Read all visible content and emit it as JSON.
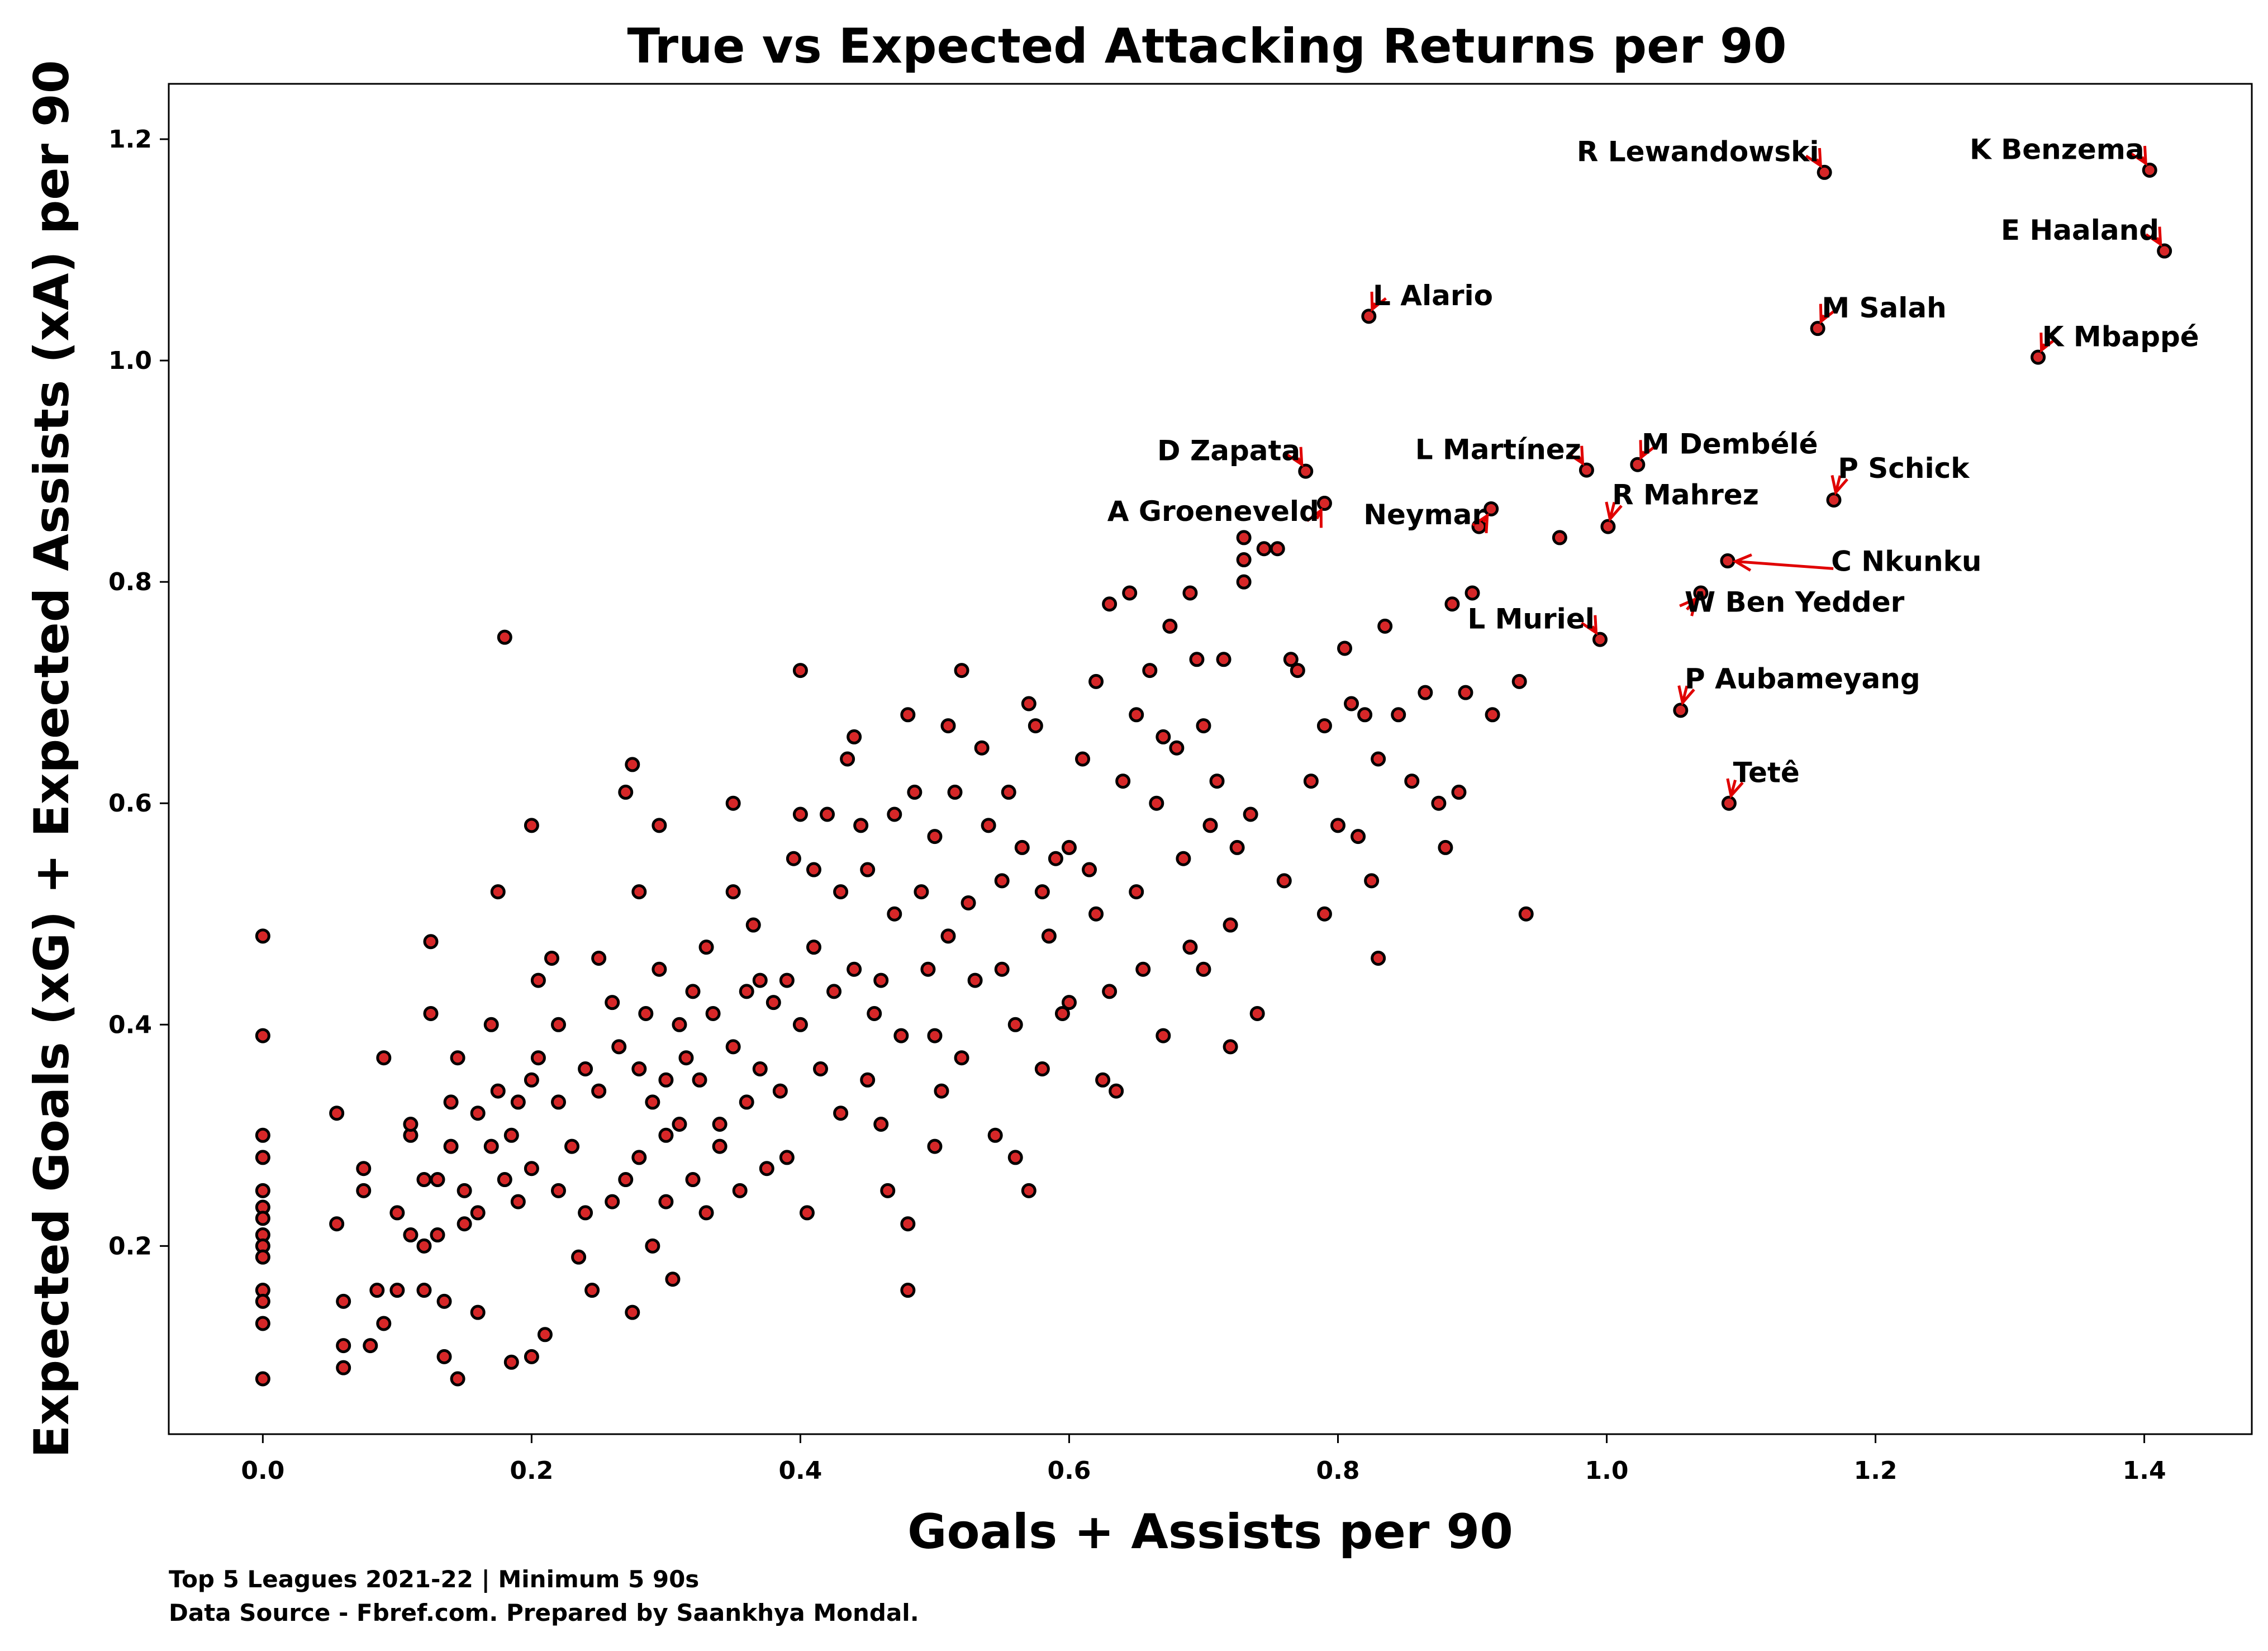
{
  "chart_data": {
    "type": "scatter",
    "title": "True vs Expected Attacking Returns per 90",
    "xlabel": "Goals + Assists per 90",
    "ylabel": "Expected Goals (xG) + Expected Assists (xA) per 90",
    "xlim": [
      -0.07,
      1.48
    ],
    "ylim": [
      0.03,
      1.25
    ],
    "x_ticks": [
      0.0,
      0.2,
      0.4,
      0.6,
      0.8,
      1.0,
      1.2,
      1.4
    ],
    "y_ticks": [
      0.2,
      0.4,
      0.6,
      0.8,
      1.0,
      1.2
    ],
    "x_tick_labels": [
      "0.0",
      "0.2",
      "0.4",
      "0.6",
      "0.8",
      "1.0",
      "1.2",
      "1.4"
    ],
    "y_tick_labels": [
      "0.2",
      "0.4",
      "0.6",
      "0.8",
      "1.0",
      "1.2"
    ],
    "grid": false,
    "marker_color": "#d62728",
    "arrow_color": "#e00000",
    "points": [
      [
        0.0,
        0.48
      ],
      [
        0.0,
        0.39
      ],
      [
        0.0,
        0.3
      ],
      [
        0.0,
        0.28
      ],
      [
        0.0,
        0.25
      ],
      [
        0.0,
        0.235
      ],
      [
        0.0,
        0.225
      ],
      [
        0.0,
        0.21
      ],
      [
        0.0,
        0.2
      ],
      [
        0.0,
        0.19
      ],
      [
        0.0,
        0.16
      ],
      [
        0.0,
        0.15
      ],
      [
        0.0,
        0.13
      ],
      [
        0.0,
        0.08
      ],
      [
        0.055,
        0.32
      ],
      [
        0.055,
        0.22
      ],
      [
        0.06,
        0.15
      ],
      [
        0.06,
        0.09
      ],
      [
        0.06,
        0.11
      ],
      [
        0.075,
        0.25
      ],
      [
        0.075,
        0.27
      ],
      [
        0.08,
        0.11
      ],
      [
        0.085,
        0.16
      ],
      [
        0.09,
        0.37
      ],
      [
        0.09,
        0.13
      ],
      [
        0.1,
        0.23
      ],
      [
        0.1,
        0.16
      ],
      [
        0.11,
        0.21
      ],
      [
        0.11,
        0.3
      ],
      [
        0.11,
        0.31
      ],
      [
        0.12,
        0.26
      ],
      [
        0.12,
        0.16
      ],
      [
        0.12,
        0.2
      ],
      [
        0.125,
        0.41
      ],
      [
        0.125,
        0.475
      ],
      [
        0.13,
        0.26
      ],
      [
        0.13,
        0.21
      ],
      [
        0.135,
        0.1
      ],
      [
        0.135,
        0.15
      ],
      [
        0.14,
        0.33
      ],
      [
        0.14,
        0.29
      ],
      [
        0.145,
        0.08
      ],
      [
        0.145,
        0.37
      ],
      [
        0.15,
        0.25
      ],
      [
        0.15,
        0.22
      ],
      [
        0.16,
        0.23
      ],
      [
        0.16,
        0.32
      ],
      [
        0.16,
        0.14
      ],
      [
        0.17,
        0.4
      ],
      [
        0.17,
        0.29
      ],
      [
        0.175,
        0.52
      ],
      [
        0.175,
        0.34
      ],
      [
        0.18,
        0.75
      ],
      [
        0.18,
        0.26
      ],
      [
        0.185,
        0.3
      ],
      [
        0.185,
        0.095
      ],
      [
        0.19,
        0.33
      ],
      [
        0.19,
        0.24
      ],
      [
        0.2,
        0.58
      ],
      [
        0.2,
        0.35
      ],
      [
        0.2,
        0.1
      ],
      [
        0.2,
        0.27
      ],
      [
        0.205,
        0.44
      ],
      [
        0.205,
        0.37
      ],
      [
        0.21,
        0.12
      ],
      [
        0.215,
        0.46
      ],
      [
        0.22,
        0.4
      ],
      [
        0.22,
        0.33
      ],
      [
        0.22,
        0.25
      ],
      [
        0.23,
        0.29
      ],
      [
        0.235,
        0.19
      ],
      [
        0.24,
        0.36
      ],
      [
        0.24,
        0.23
      ],
      [
        0.245,
        0.16
      ],
      [
        0.25,
        0.46
      ],
      [
        0.25,
        0.34
      ],
      [
        0.26,
        0.42
      ],
      [
        0.26,
        0.24
      ],
      [
        0.265,
        0.38
      ],
      [
        0.27,
        0.61
      ],
      [
        0.27,
        0.26
      ],
      [
        0.275,
        0.635
      ],
      [
        0.275,
        0.14
      ],
      [
        0.28,
        0.52
      ],
      [
        0.28,
        0.36
      ],
      [
        0.28,
        0.28
      ],
      [
        0.285,
        0.41
      ],
      [
        0.29,
        0.33
      ],
      [
        0.29,
        0.2
      ],
      [
        0.295,
        0.58
      ],
      [
        0.295,
        0.45
      ],
      [
        0.3,
        0.35
      ],
      [
        0.3,
        0.3
      ],
      [
        0.3,
        0.24
      ],
      [
        0.305,
        0.17
      ],
      [
        0.31,
        0.4
      ],
      [
        0.31,
        0.31
      ],
      [
        0.315,
        0.37
      ],
      [
        0.32,
        0.43
      ],
      [
        0.32,
        0.26
      ],
      [
        0.325,
        0.35
      ],
      [
        0.33,
        0.47
      ],
      [
        0.33,
        0.23
      ],
      [
        0.335,
        0.41
      ],
      [
        0.34,
        0.31
      ],
      [
        0.34,
        0.29
      ],
      [
        0.35,
        0.6
      ],
      [
        0.35,
        0.52
      ],
      [
        0.35,
        0.38
      ],
      [
        0.355,
        0.25
      ],
      [
        0.36,
        0.43
      ],
      [
        0.36,
        0.33
      ],
      [
        0.365,
        0.49
      ],
      [
        0.37,
        0.44
      ],
      [
        0.37,
        0.36
      ],
      [
        0.375,
        0.27
      ],
      [
        0.38,
        0.42
      ],
      [
        0.385,
        0.34
      ],
      [
        0.39,
        0.44
      ],
      [
        0.39,
        0.28
      ],
      [
        0.395,
        0.55
      ],
      [
        0.4,
        0.72
      ],
      [
        0.4,
        0.59
      ],
      [
        0.4,
        0.4
      ],
      [
        0.405,
        0.23
      ],
      [
        0.41,
        0.54
      ],
      [
        0.41,
        0.47
      ],
      [
        0.415,
        0.36
      ],
      [
        0.42,
        0.59
      ],
      [
        0.425,
        0.43
      ],
      [
        0.43,
        0.32
      ],
      [
        0.43,
        0.52
      ],
      [
        0.435,
        0.64
      ],
      [
        0.44,
        0.66
      ],
      [
        0.44,
        0.45
      ],
      [
        0.445,
        0.58
      ],
      [
        0.45,
        0.35
      ],
      [
        0.45,
        0.54
      ],
      [
        0.455,
        0.41
      ],
      [
        0.46,
        0.31
      ],
      [
        0.46,
        0.44
      ],
      [
        0.465,
        0.25
      ],
      [
        0.47,
        0.59
      ],
      [
        0.47,
        0.5
      ],
      [
        0.475,
        0.39
      ],
      [
        0.48,
        0.68
      ],
      [
        0.48,
        0.22
      ],
      [
        0.48,
        0.16
      ],
      [
        0.485,
        0.61
      ],
      [
        0.49,
        0.52
      ],
      [
        0.495,
        0.45
      ],
      [
        0.5,
        0.57
      ],
      [
        0.5,
        0.29
      ],
      [
        0.5,
        0.39
      ],
      [
        0.505,
        0.34
      ],
      [
        0.51,
        0.67
      ],
      [
        0.51,
        0.48
      ],
      [
        0.515,
        0.61
      ],
      [
        0.52,
        0.72
      ],
      [
        0.52,
        0.37
      ],
      [
        0.525,
        0.51
      ],
      [
        0.53,
        0.44
      ],
      [
        0.535,
        0.65
      ],
      [
        0.54,
        0.58
      ],
      [
        0.545,
        0.3
      ],
      [
        0.55,
        0.53
      ],
      [
        0.55,
        0.45
      ],
      [
        0.555,
        0.61
      ],
      [
        0.56,
        0.4
      ],
      [
        0.56,
        0.28
      ],
      [
        0.565,
        0.56
      ],
      [
        0.57,
        0.69
      ],
      [
        0.57,
        0.25
      ],
      [
        0.575,
        0.67
      ],
      [
        0.58,
        0.52
      ],
      [
        0.58,
        0.36
      ],
      [
        0.585,
        0.48
      ],
      [
        0.59,
        0.55
      ],
      [
        0.595,
        0.41
      ],
      [
        0.6,
        0.56
      ],
      [
        0.6,
        0.42
      ],
      [
        0.61,
        0.64
      ],
      [
        0.615,
        0.54
      ],
      [
        0.62,
        0.71
      ],
      [
        0.62,
        0.5
      ],
      [
        0.625,
        0.35
      ],
      [
        0.63,
        0.78
      ],
      [
        0.63,
        0.43
      ],
      [
        0.635,
        0.34
      ],
      [
        0.64,
        0.62
      ],
      [
        0.645,
        0.79
      ],
      [
        0.65,
        0.68
      ],
      [
        0.65,
        0.52
      ],
      [
        0.655,
        0.45
      ],
      [
        0.66,
        0.72
      ],
      [
        0.665,
        0.6
      ],
      [
        0.67,
        0.66
      ],
      [
        0.67,
        0.39
      ],
      [
        0.675,
        0.76
      ],
      [
        0.68,
        0.65
      ],
      [
        0.685,
        0.55
      ],
      [
        0.69,
        0.79
      ],
      [
        0.69,
        0.47
      ],
      [
        0.695,
        0.73
      ],
      [
        0.7,
        0.67
      ],
      [
        0.7,
        0.45
      ],
      [
        0.705,
        0.58
      ],
      [
        0.71,
        0.62
      ],
      [
        0.715,
        0.73
      ],
      [
        0.72,
        0.49
      ],
      [
        0.72,
        0.38
      ],
      [
        0.725,
        0.56
      ],
      [
        0.73,
        0.82
      ],
      [
        0.73,
        0.8
      ],
      [
        0.735,
        0.59
      ],
      [
        0.74,
        0.41
      ],
      [
        0.745,
        0.83
      ],
      [
        0.755,
        0.83
      ],
      [
        0.76,
        0.53
      ],
      [
        0.765,
        0.73
      ],
      [
        0.77,
        0.72
      ],
      [
        0.78,
        0.62
      ],
      [
        0.79,
        0.67
      ],
      [
        0.79,
        0.5
      ],
      [
        0.8,
        0.58
      ],
      [
        0.805,
        0.74
      ],
      [
        0.81,
        0.69
      ],
      [
        0.815,
        0.57
      ],
      [
        0.82,
        0.68
      ],
      [
        0.825,
        0.53
      ],
      [
        0.83,
        0.64
      ],
      [
        0.83,
        0.46
      ],
      [
        0.835,
        0.76
      ],
      [
        0.845,
        0.68
      ],
      [
        0.855,
        0.62
      ],
      [
        0.865,
        0.7
      ],
      [
        0.875,
        0.6
      ],
      [
        0.88,
        0.56
      ],
      [
        0.885,
        0.78
      ],
      [
        0.89,
        0.61
      ],
      [
        0.895,
        0.7
      ],
      [
        0.9,
        0.79
      ],
      [
        0.915,
        0.68
      ],
      [
        0.935,
        0.71
      ],
      [
        0.94,
        0.5
      ],
      [
        0.965,
        0.84
      ],
      [
        1.404,
        1.172
      ],
      [
        1.162,
        1.17
      ],
      [
        1.415,
        1.099
      ],
      [
        0.823,
        1.04
      ],
      [
        1.157,
        1.029
      ],
      [
        1.321,
        1.003
      ],
      [
        0.776,
        0.9
      ],
      [
        0.985,
        0.901
      ],
      [
        1.023,
        0.906
      ],
      [
        0.79,
        0.871
      ],
      [
        0.914,
        0.866
      ],
      [
        0.905,
        0.85
      ],
      [
        1.001,
        0.85
      ],
      [
        1.169,
        0.874
      ],
      [
        1.09,
        0.819
      ],
      [
        1.07,
        0.79
      ],
      [
        0.995,
        0.748
      ],
      [
        1.055,
        0.684
      ],
      [
        1.091,
        0.6
      ],
      [
        0.73,
        0.84
      ]
    ],
    "annotations": [
      {
        "label": "R Lewandowski",
        "x": 1.162,
        "y": 1.17,
        "anchor": "end",
        "tx": 1.158,
        "ty": 1.18
      },
      {
        "label": "K Benzema",
        "x": 1.404,
        "y": 1.172,
        "anchor": "end",
        "tx": 1.4,
        "ty": 1.182
      },
      {
        "label": "E Haaland",
        "x": 1.415,
        "y": 1.099,
        "anchor": "end",
        "tx": 1.411,
        "ty": 1.109
      },
      {
        "label": "L Alario",
        "x": 0.823,
        "y": 1.04,
        "anchor": "start",
        "tx": 0.826,
        "ty": 1.05
      },
      {
        "label": "M Salah",
        "x": 1.157,
        "y": 1.029,
        "anchor": "start",
        "tx": 1.16,
        "ty": 1.039
      },
      {
        "label": "K Mbappé",
        "x": 1.321,
        "y": 1.003,
        "anchor": "start",
        "tx": 1.324,
        "ty": 1.013
      },
      {
        "label": "D Zapata",
        "x": 0.776,
        "y": 0.9,
        "anchor": "end",
        "tx": 0.772,
        "ty": 0.91
      },
      {
        "label": "L Martínez",
        "x": 0.985,
        "y": 0.901,
        "anchor": "end",
        "tx": 0.981,
        "ty": 0.911
      },
      {
        "label": "M Dembélé",
        "x": 1.023,
        "y": 0.906,
        "anchor": "start",
        "tx": 1.026,
        "ty": 0.916
      },
      {
        "label": "A Groeneveld",
        "x": 0.79,
        "y": 0.871,
        "anchor": "end",
        "tx": 0.786,
        "ty": 0.855
      },
      {
        "label": "Neymar",
        "x": 0.914,
        "y": 0.866,
        "anchor": "end",
        "tx": 0.91,
        "ty": 0.852
      },
      {
        "label": "R Mahrez",
        "x": 1.001,
        "y": 0.85,
        "anchor": "start",
        "tx": 1.004,
        "ty": 0.87
      },
      {
        "label": "P Schick",
        "x": 1.169,
        "y": 0.874,
        "anchor": "start",
        "tx": 1.172,
        "ty": 0.894
      },
      {
        "label": "C Nkunku",
        "x": 1.09,
        "y": 0.819,
        "anchor": "start",
        "tx": 1.167,
        "ty": 0.81
      },
      {
        "label": "W Ben Yedder",
        "x": 1.07,
        "y": 0.79,
        "anchor": "start",
        "tx": 1.058,
        "ty": 0.773
      },
      {
        "label": "L Muriel",
        "x": 0.995,
        "y": 0.748,
        "anchor": "end",
        "tx": 0.991,
        "ty": 0.758
      },
      {
        "label": "P Aubameyang",
        "x": 1.055,
        "y": 0.684,
        "anchor": "start",
        "tx": 1.058,
        "ty": 0.704
      },
      {
        "label": "Tetê",
        "x": 1.091,
        "y": 0.6,
        "anchor": "start",
        "tx": 1.094,
        "ty": 0.619
      }
    ],
    "footer": [
      "Top 5 Leagues 2021-22 | Minimum 5 90s",
      "Data Source - Fbref.com. Prepared by Saankhya Mondal."
    ]
  }
}
